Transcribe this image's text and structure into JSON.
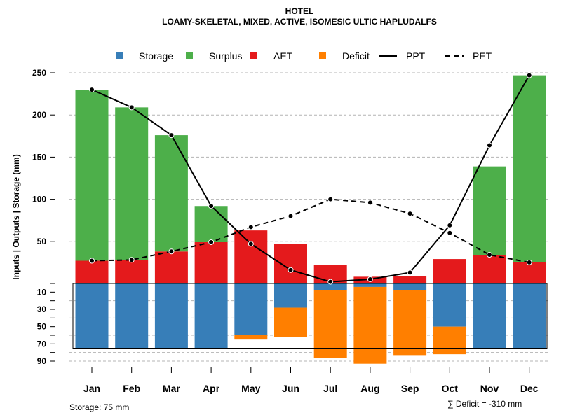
{
  "chart_data": {
    "type": "bar",
    "title": "HOTEL",
    "subtitle": "LOAMY-SKELETAL, MIXED, ACTIVE, ISOMESIC ULTIC HAPLUDALFS",
    "ylabel": "Inputs | Outputs | Storage   (mm)",
    "xlabel": "",
    "categories": [
      "Jan",
      "Feb",
      "Mar",
      "Apr",
      "May",
      "Jun",
      "Jul",
      "Aug",
      "Sep",
      "Oct",
      "Nov",
      "Dec"
    ],
    "ylim_upper": [
      0,
      250
    ],
    "ylim_lower": [
      0,
      90
    ],
    "upper_ticks": [
      "250",
      "200",
      "150",
      "100",
      "50"
    ],
    "upper_tick_values": [
      250,
      200,
      150,
      100,
      50
    ],
    "lower_ticks": [
      "10",
      "30",
      "50",
      "70",
      "90"
    ],
    "lower_tick_values": [
      10,
      30,
      50,
      70,
      90
    ],
    "legend": [
      {
        "label": "Storage",
        "kind": "box",
        "color": "#377EB8"
      },
      {
        "label": "Surplus",
        "kind": "box",
        "color": "#4DAF4A"
      },
      {
        "label": "AET",
        "kind": "box",
        "color": "#E41A1C"
      },
      {
        "label": "Deficit",
        "kind": "box",
        "color": "#FF7F00"
      },
      {
        "label": "PPT",
        "kind": "solid",
        "color": "#000000"
      },
      {
        "label": "PET",
        "kind": "dashed",
        "color": "#000000"
      }
    ],
    "series": [
      {
        "name": "AET",
        "color": "#E41A1C",
        "values": [
          27,
          28,
          38,
          49,
          63,
          47,
          22,
          8,
          9,
          29,
          34,
          25
        ]
      },
      {
        "name": "Surplus",
        "color": "#4DAF4A",
        "values": [
          203,
          181,
          138,
          43,
          0,
          0,
          0,
          0,
          0,
          0,
          105,
          222
        ]
      },
      {
        "name": "Storage",
        "color": "#377EB8",
        "values": [
          75,
          75,
          75,
          75,
          60,
          28,
          8,
          4,
          8,
          50,
          75,
          75
        ]
      },
      {
        "name": "Deficit",
        "color": "#FF7F00",
        "values": [
          0,
          0,
          0,
          0,
          5,
          34,
          78,
          89,
          75,
          32,
          0,
          0
        ]
      },
      {
        "name": "PPT",
        "color": "#000000",
        "values": [
          230,
          209,
          176,
          92,
          47,
          16,
          2,
          5,
          13,
          69,
          164,
          247
        ]
      },
      {
        "name": "PET",
        "color": "#000000",
        "values": [
          27,
          28,
          38,
          49,
          67,
          80,
          100,
          96,
          83,
          60,
          34,
          25
        ]
      }
    ],
    "grid": true
  },
  "footer": {
    "storage_label": "Storage: 75 mm",
    "deficit_label": "∑ Deficit = -310 mm"
  }
}
